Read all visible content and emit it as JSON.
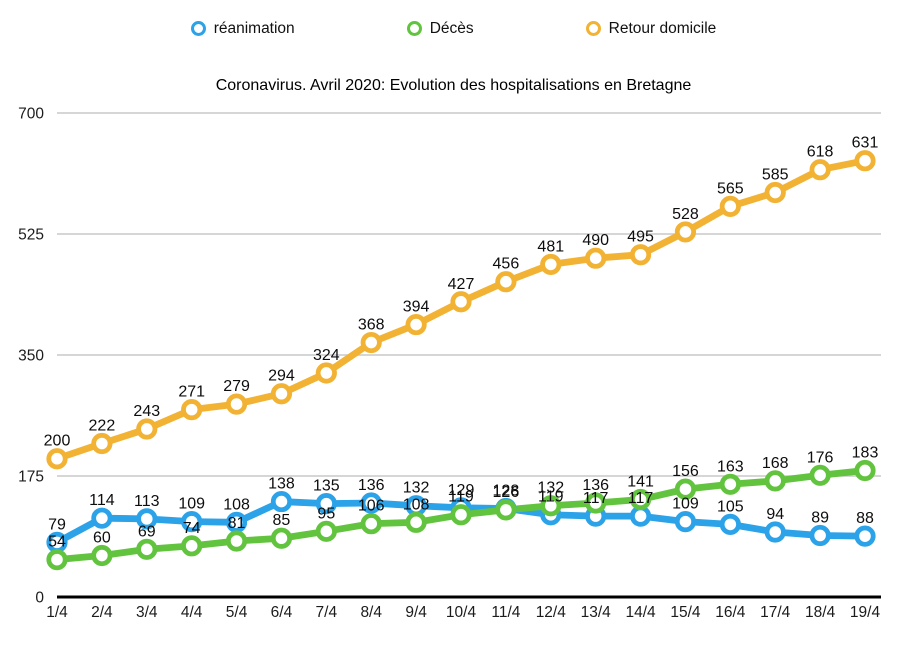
{
  "chart_data": {
    "type": "line",
    "title": "Coronavirus. Avril 2020: Evolution des hospitalisations en Bretagne",
    "x_categories": [
      "1/4",
      "2/4",
      "3/4",
      "4/4",
      "5/4",
      "6/4",
      "7/4",
      "8/4",
      "9/4",
      "10/4",
      "11/4",
      "12/4",
      "13/4",
      "14/4",
      "15/4",
      "16/4",
      "17/4",
      "18/4",
      "19/4"
    ],
    "series": [
      {
        "name": "réanimation",
        "color": "#2ca2e8",
        "values": [
          79,
          114,
          113,
          109,
          108,
          138,
          135,
          136,
          132,
          129,
          128,
          119,
          117,
          117,
          109,
          105,
          94,
          89,
          88
        ]
      },
      {
        "name": "Décès",
        "color": "#62c43e",
        "values": [
          54,
          60,
          69,
          74,
          81,
          85,
          95,
          106,
          108,
          119,
          126,
          132,
          136,
          141,
          156,
          163,
          168,
          176,
          183
        ]
      },
      {
        "name": "Retour domicile",
        "color": "#f2b233",
        "values": [
          200,
          222,
          243,
          271,
          279,
          294,
          324,
          368,
          394,
          427,
          456,
          481,
          490,
          495,
          528,
          565,
          585,
          618,
          631
        ]
      }
    ],
    "ylim": [
      0,
      700
    ],
    "yticks": [
      0,
      175,
      350,
      525,
      700
    ],
    "grid": true,
    "data_labels": true,
    "legend_position": "top",
    "marker": "ring",
    "axis_color": "#000000",
    "gridline_color": "#c9c9c9",
    "background": "#ffffff"
  }
}
